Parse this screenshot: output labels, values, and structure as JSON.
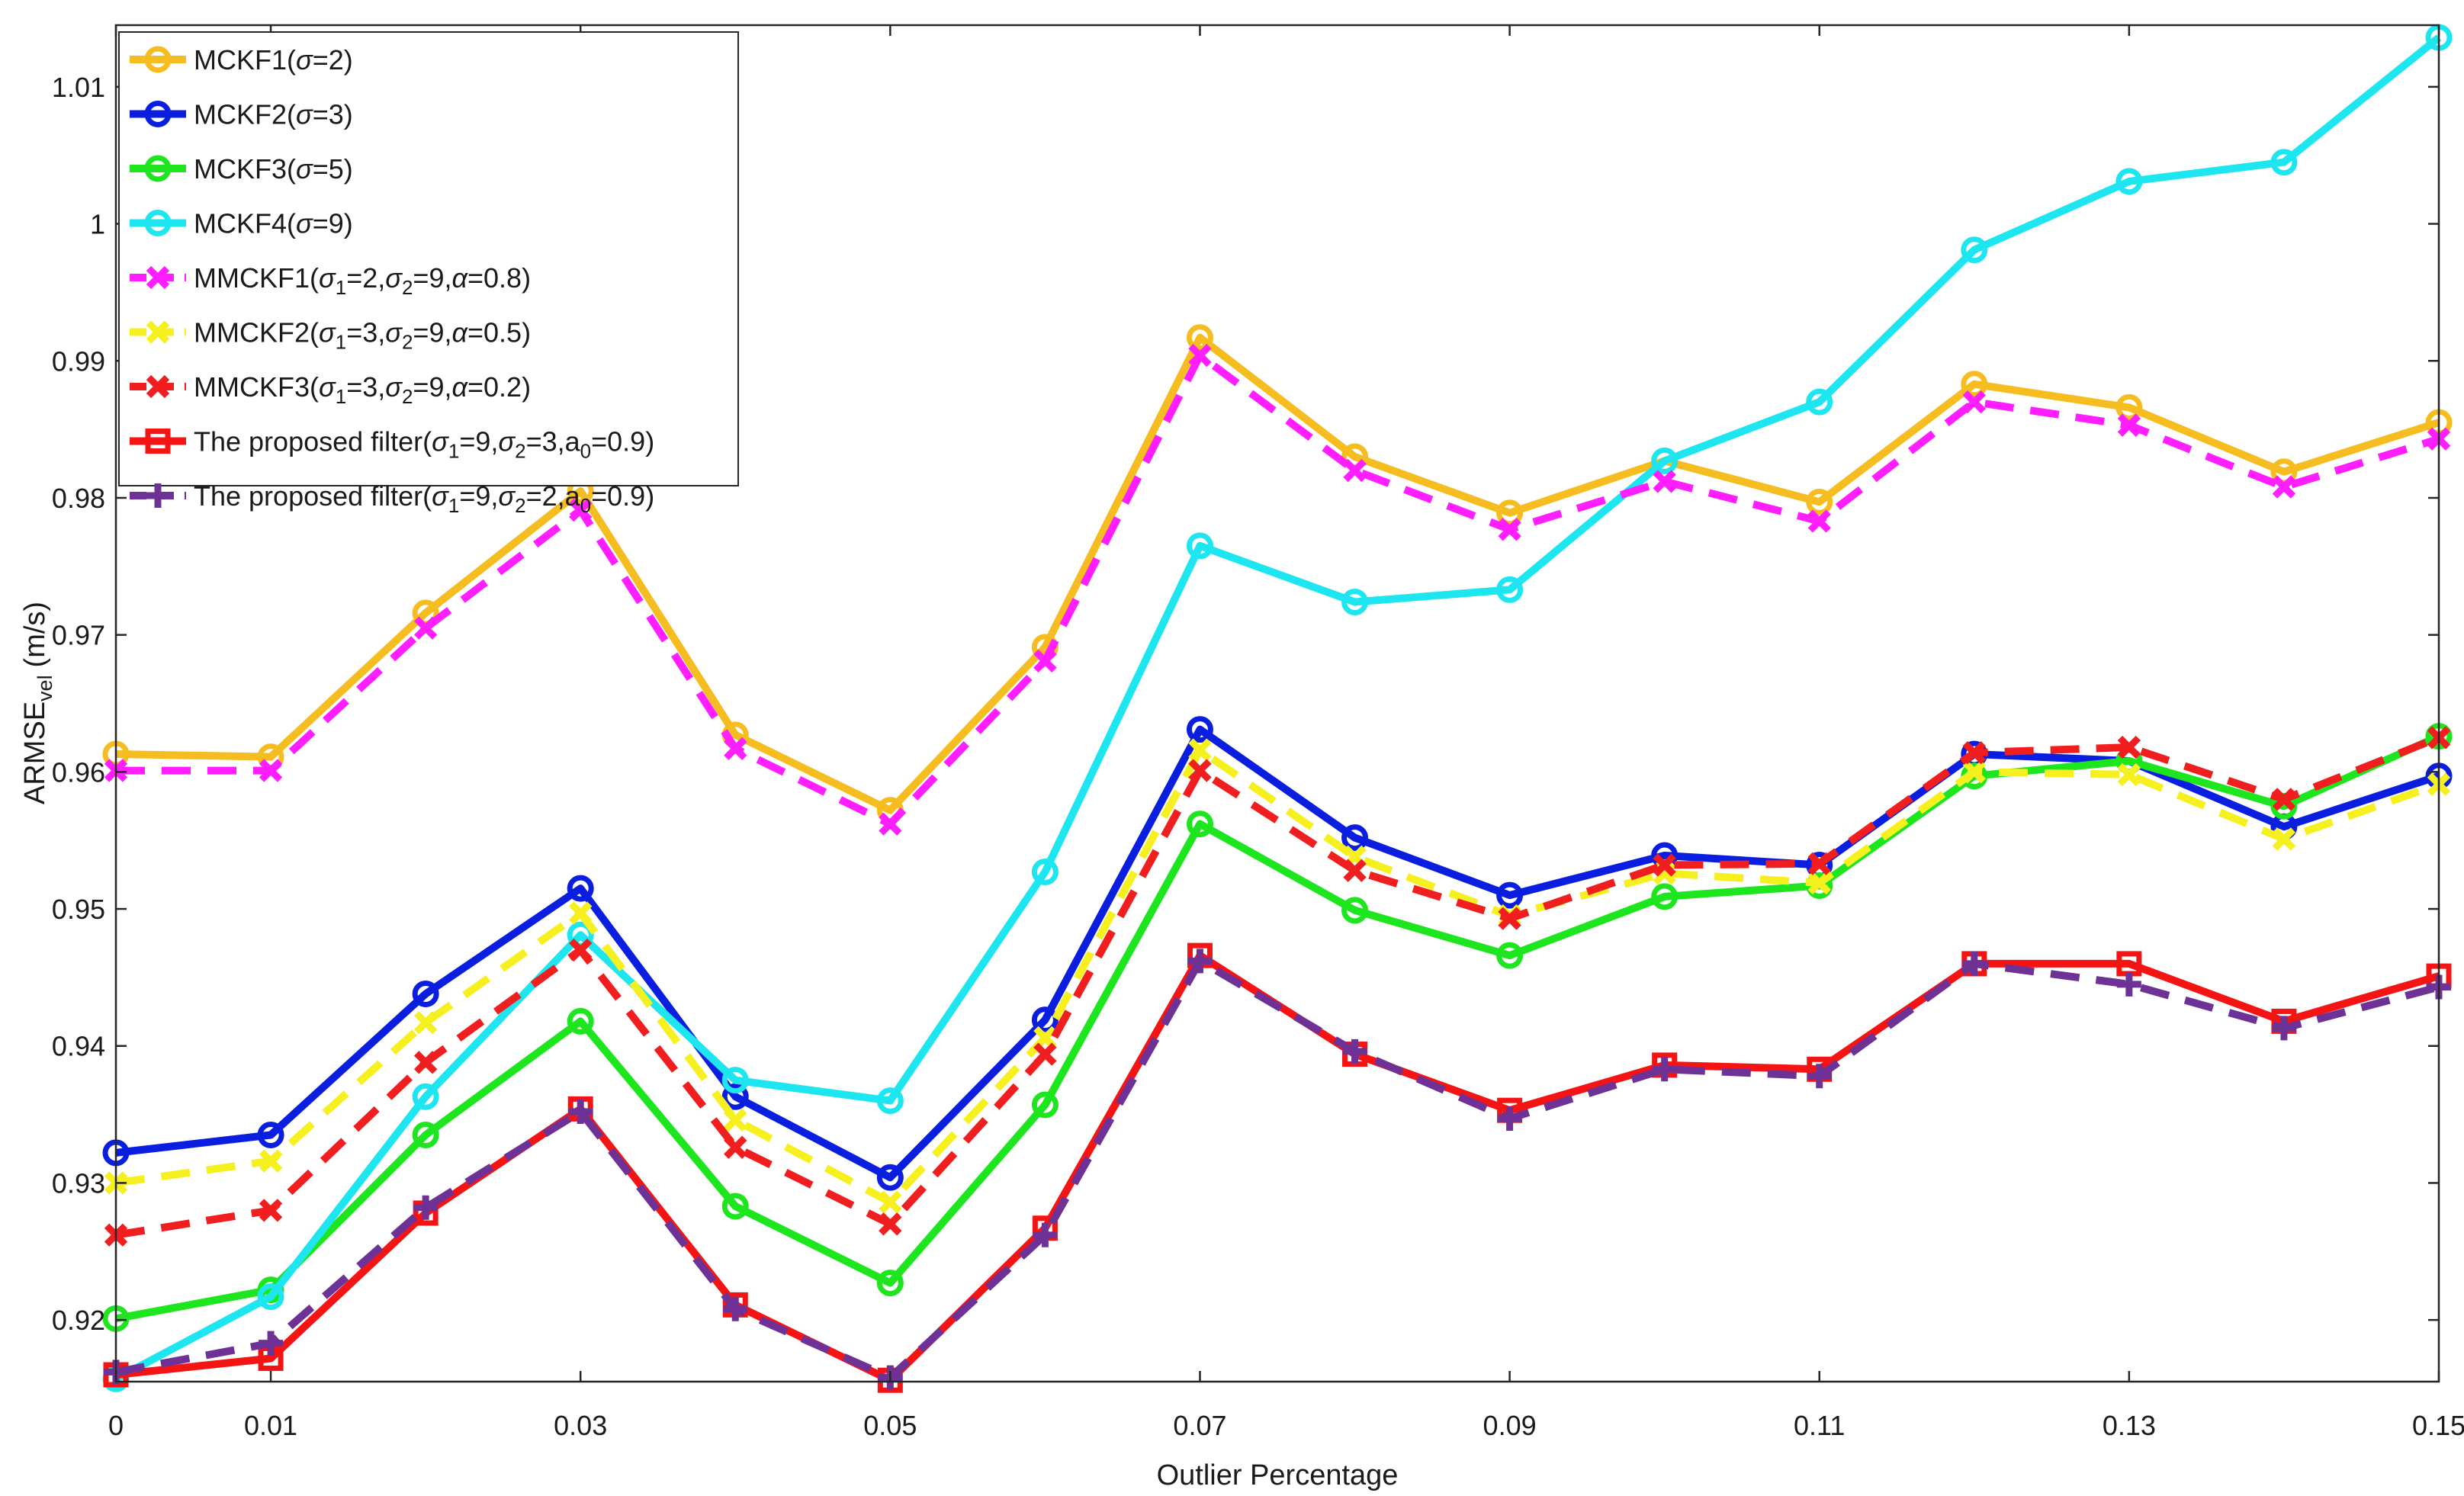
{
  "chart_data": {
    "type": "line",
    "title": "",
    "xlabel": "Outlier Percentage",
    "ylabel": "ARMSE",
    "ylabel_sub": "vel",
    "ylabel_unit": "(m/s)",
    "xlim": [
      0,
      0.15
    ],
    "ylim": [
      0.9155,
      1.0145
    ],
    "xticks": [
      0,
      0.01,
      0.03,
      0.05,
      0.07,
      0.09,
      0.11,
      0.13,
      0.15
    ],
    "xtick_labels": [
      "0",
      "0.01",
      "0.03",
      "0.05",
      "0.07",
      "0.09",
      "0.11",
      "0.13",
      "0.15"
    ],
    "yticks": [
      0.92,
      0.93,
      0.94,
      0.95,
      0.96,
      0.97,
      0.98,
      0.99,
      1.0,
      1.01
    ],
    "ytick_labels": [
      "0.92",
      "0.93",
      "0.94",
      "0.95",
      "0.96",
      "0.97",
      "0.98",
      "0.99",
      "1",
      "1.01"
    ],
    "grid": false,
    "legend_position": "top-left",
    "x": [
      0,
      0.01,
      0.02,
      0.03,
      0.04,
      0.05,
      0.06,
      0.07,
      0.08,
      0.09,
      0.1,
      0.11,
      0.12,
      0.13,
      0.14,
      0.15
    ],
    "series": [
      {
        "name": "MCKF1(σ=2)",
        "legend_parts": [
          {
            "t": "MCKF1("
          },
          {
            "t": "σ",
            "i": true
          },
          {
            "t": "=2)"
          }
        ],
        "color": "#f5bd1f",
        "dash": false,
        "marker": "circle",
        "values": [
          0.9613,
          0.9611,
          0.9716,
          0.9805,
          0.9627,
          0.9572,
          0.9691,
          0.9917,
          0.983,
          0.9789,
          0.9827,
          0.9797,
          0.9883,
          0.9866,
          0.9819,
          0.9855
        ]
      },
      {
        "name": "MCKF2(σ=3)",
        "legend_parts": [
          {
            "t": "MCKF2("
          },
          {
            "t": "σ",
            "i": true
          },
          {
            "t": "=3)"
          }
        ],
        "color": "#0a1ee0",
        "dash": false,
        "marker": "circle",
        "values": [
          0.9322,
          0.9335,
          0.9438,
          0.9515,
          0.9363,
          0.9304,
          0.9419,
          0.9631,
          0.9552,
          0.951,
          0.9539,
          0.9532,
          0.9613,
          0.9608,
          0.956,
          0.9597
        ]
      },
      {
        "name": "MCKF3(σ=5)",
        "legend_parts": [
          {
            "t": "MCKF3("
          },
          {
            "t": "σ",
            "i": true
          },
          {
            "t": "=5)"
          }
        ],
        "color": "#1ee61e",
        "dash": false,
        "marker": "circle",
        "values": [
          0.9201,
          0.9222,
          0.9335,
          0.9418,
          0.9283,
          0.9227,
          0.9357,
          0.9562,
          0.9499,
          0.9466,
          0.9509,
          0.9517,
          0.9597,
          0.9608,
          0.9575,
          0.9626
        ]
      },
      {
        "name": "MCKF4(σ=9)",
        "legend_parts": [
          {
            "t": "MCKF4("
          },
          {
            "t": "σ",
            "i": true
          },
          {
            "t": "=9)"
          }
        ],
        "color": "#1ee6f0",
        "dash": false,
        "marker": "circle",
        "values": [
          0.9157,
          0.9217,
          0.9363,
          0.9481,
          0.9375,
          0.936,
          0.9527,
          0.9765,
          0.9724,
          0.9733,
          0.9827,
          0.987,
          0.9981,
          1.0031,
          1.0045,
          1.0136
        ]
      },
      {
        "name": "MMCKF1(σ1=2,σ2=9,α=0.8)",
        "legend_parts": [
          {
            "t": "MMCKF1("
          },
          {
            "t": "σ",
            "i": true
          },
          {
            "t": "1",
            "s": true
          },
          {
            "t": "=2,"
          },
          {
            "t": "σ",
            "i": true
          },
          {
            "t": "2",
            "s": true
          },
          {
            "t": "=9,"
          },
          {
            "t": "α",
            "i": true
          },
          {
            "t": "=0.8)"
          }
        ],
        "color": "#ff1eff",
        "dash": true,
        "marker": "x",
        "values": [
          0.9601,
          0.9601,
          0.9705,
          0.9791,
          0.9617,
          0.9562,
          0.9681,
          0.9904,
          0.982,
          0.9777,
          0.9812,
          0.9783,
          0.987,
          0.9853,
          0.9808,
          0.9843
        ]
      },
      {
        "name": "MMCKF2(σ1=3,σ2=9,α=0.5)",
        "legend_parts": [
          {
            "t": "MMCKF2("
          },
          {
            "t": "σ",
            "i": true
          },
          {
            "t": "1",
            "s": true
          },
          {
            "t": "=3,"
          },
          {
            "t": "σ",
            "i": true
          },
          {
            "t": "2",
            "s": true
          },
          {
            "t": "=9,"
          },
          {
            "t": "α",
            "i": true
          },
          {
            "t": "=0.5)"
          }
        ],
        "color": "#f5f01e",
        "dash": true,
        "marker": "x",
        "values": [
          0.93,
          0.9316,
          0.9417,
          0.9497,
          0.9346,
          0.9286,
          0.9406,
          0.9616,
          0.9538,
          0.9495,
          0.9526,
          0.9519,
          0.96,
          0.9598,
          0.9551,
          0.9591
        ]
      },
      {
        "name": "MMCKF3(σ1=3,σ2=9,α=0.2)",
        "legend_parts": [
          {
            "t": "MMCKF3("
          },
          {
            "t": "σ",
            "i": true
          },
          {
            "t": "1",
            "s": true
          },
          {
            "t": "=3,"
          },
          {
            "t": "σ",
            "i": true
          },
          {
            "t": "2",
            "s": true
          },
          {
            "t": "=9,"
          },
          {
            "t": "α",
            "i": true
          },
          {
            "t": "=0.2)"
          }
        ],
        "color": "#f01e1e",
        "dash": true,
        "marker": "x",
        "values": [
          0.9262,
          0.928,
          0.9388,
          0.947,
          0.9326,
          0.927,
          0.9394,
          0.9601,
          0.9528,
          0.9493,
          0.9532,
          0.9533,
          0.9614,
          0.9618,
          0.958,
          0.9625
        ]
      },
      {
        "name": "The proposed filter(σ1=9,σ2=3,a0=0.9)",
        "legend_parts": [
          {
            "t": "The proposed filter("
          },
          {
            "t": "σ",
            "i": true
          },
          {
            "t": "1",
            "s": true
          },
          {
            "t": "=9,"
          },
          {
            "t": "σ",
            "i": true
          },
          {
            "t": "2",
            "s": true
          },
          {
            "t": "=3,a"
          },
          {
            "t": "0",
            "s": true
          },
          {
            "t": "=0.9)"
          }
        ],
        "color": "#f51414",
        "dash": false,
        "marker": "square",
        "values": [
          0.916,
          0.9172,
          0.9278,
          0.9354,
          0.9211,
          0.9156,
          0.9267,
          0.9466,
          0.9394,
          0.9353,
          0.9386,
          0.9383,
          0.946,
          0.946,
          0.9418,
          0.9451
        ]
      },
      {
        "name": "The proposed filter(σ1=9,σ2=2,a0=0.9)",
        "legend_parts": [
          {
            "t": "The proposed filter("
          },
          {
            "t": "σ",
            "i": true
          },
          {
            "t": "1",
            "s": true
          },
          {
            "t": "=9,"
          },
          {
            "t": "σ",
            "i": true
          },
          {
            "t": "2",
            "s": true
          },
          {
            "t": "=2,a"
          },
          {
            "t": "0",
            "s": true
          },
          {
            "t": "=0.9)"
          }
        ],
        "color": "#6e3296",
        "dash": true,
        "marker": "plus",
        "values": [
          0.9162,
          0.9183,
          0.9282,
          0.9352,
          0.9208,
          0.9158,
          0.9262,
          0.9462,
          0.9396,
          0.9347,
          0.9383,
          0.9378,
          0.946,
          0.9445,
          0.9413,
          0.9443
        ]
      }
    ]
  }
}
